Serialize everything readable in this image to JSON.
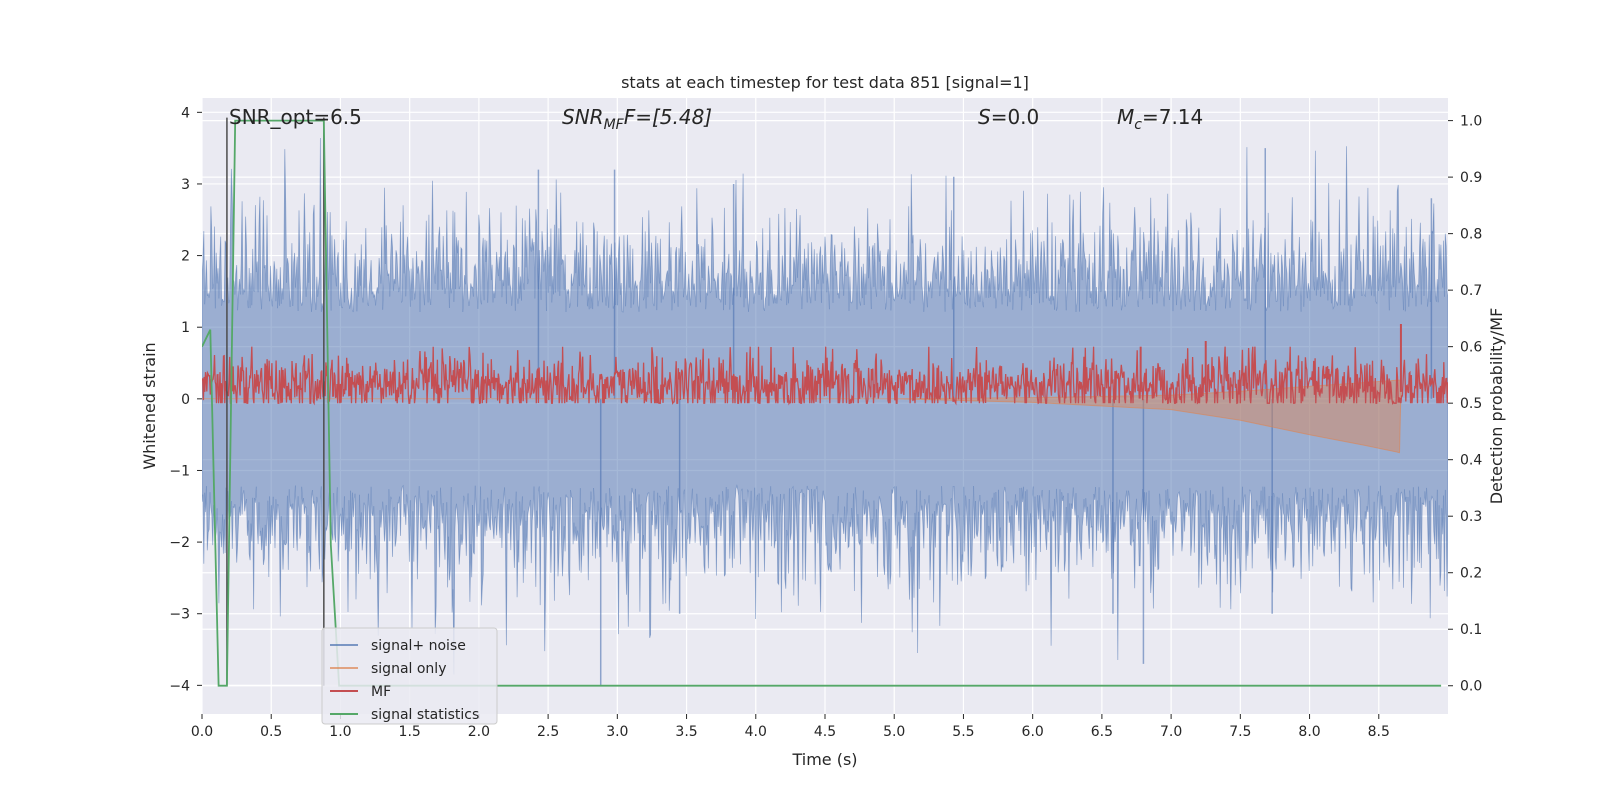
{
  "chart_data": {
    "type": "line",
    "title": "stats at each timestep for test data 851 [signal=1]",
    "xlabel": "Time (s)",
    "ylabel": "Whitened strain",
    "ylabel_right": "Detection probability/MF",
    "xlim": [
      0.0,
      9.0
    ],
    "ylim": [
      -4.4,
      4.2
    ],
    "ylim_right": [
      -0.05,
      1.04
    ],
    "xticks": [
      "0.0",
      "0.5",
      "1.0",
      "1.5",
      "2.0",
      "2.5",
      "3.0",
      "3.5",
      "4.0",
      "4.5",
      "5.0",
      "5.5",
      "6.0",
      "6.5",
      "7.0",
      "7.5",
      "8.0",
      "8.5"
    ],
    "yticks": [
      "4",
      "3",
      "2",
      "1",
      "0",
      "−1",
      "−2",
      "−3",
      "−4"
    ],
    "yticks_right": [
      "1.0",
      "0.9",
      "0.8",
      "0.7",
      "0.6",
      "0.5",
      "0.4",
      "0.3",
      "0.2",
      "0.1",
      "0.0"
    ],
    "grid": true,
    "legend_position": "lower-left",
    "annotations": {
      "snr_opt": "SNR_opt=6.5",
      "snr_mf_label": "SNR",
      "snr_mf_sub": "MF",
      "snr_mf_value": "F=[5.48]",
      "s_label": "S",
      "s_value": "=0.0",
      "mc_label": "M",
      "mc_sub": "c",
      "mc_value": "=7.14"
    },
    "series": [
      {
        "name": "signal+ noise",
        "color": "#4c72b0",
        "approx_abs_envelope": 2.2,
        "peak_values": [
          [
            2.43,
            3.2
          ],
          [
            2.98,
            3.2
          ],
          [
            3.84,
            3.0
          ],
          [
            5.43,
            3.1
          ],
          [
            7.68,
            3.5
          ],
          [
            8.88,
            2.8
          ],
          [
            2.88,
            -4.0
          ],
          [
            6.8,
            -3.7
          ],
          [
            3.45,
            -3.0
          ],
          [
            6.58,
            -3.0
          ],
          [
            7.73,
            -3.0
          ]
        ]
      },
      {
        "name": "signal only",
        "color": "#dd8452",
        "values": [
          [
            0.0,
            0.0
          ],
          [
            5.0,
            0.0
          ],
          [
            6.0,
            -0.05
          ],
          [
            7.0,
            -0.15
          ],
          [
            7.5,
            -0.3
          ],
          [
            8.0,
            -0.5
          ],
          [
            8.4,
            -0.65
          ],
          [
            8.65,
            -0.75
          ],
          [
            8.66,
            0.1
          ]
        ]
      },
      {
        "name": "MF",
        "color": "#c44e52",
        "axis": "right",
        "approx_range": [
          0.5,
          0.59
        ],
        "peak_values": [
          [
            6.78,
            0.6
          ],
          [
            7.25,
            0.61
          ],
          [
            8.66,
            0.64
          ]
        ]
      },
      {
        "name": "signal statistics",
        "color": "#55a868",
        "axis": "right",
        "values": [
          [
            0.0,
            0.6
          ],
          [
            0.06,
            0.63
          ],
          [
            0.12,
            0.0
          ],
          [
            0.18,
            0.0
          ],
          [
            0.24,
            1.0
          ],
          [
            0.8,
            1.0
          ],
          [
            0.88,
            1.0
          ],
          [
            0.93,
            0.25
          ],
          [
            0.99,
            0.0
          ],
          [
            8.95,
            0.0
          ]
        ]
      }
    ],
    "vertical_markers": [
      0.18,
      0.88
    ],
    "marker_color": "#4d4d4d"
  }
}
